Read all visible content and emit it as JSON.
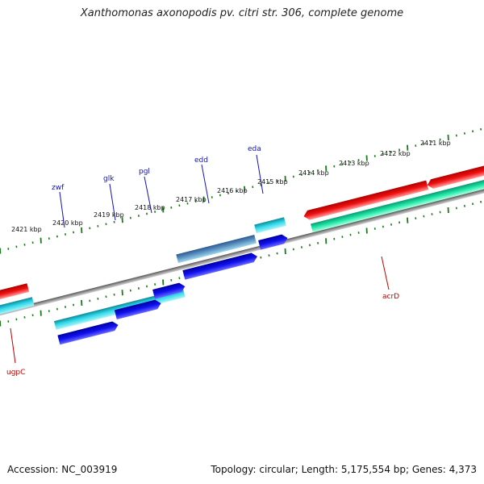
{
  "title": "Xanthomonas axonopodis pv. citri str. 306, complete genome",
  "footer": {
    "accession": "Accession: NC_003919",
    "topology": "Topology: circular; Length: 5,175,554 bp; Genes: 4,373"
  },
  "colors": {
    "backbone": "#808080",
    "ticks": "#1a7a1a",
    "label_blue": "#1010c0",
    "label_red": "#c00000",
    "cds_cyan": "#1fc8d8",
    "cds_blue": "#1010e0",
    "cds_red": "#e81010",
    "cds_green": "#20e0a0",
    "cds_steel": "#3a7ab0"
  },
  "kbp_labels": [
    "2411 kbp",
    "2412 kbp",
    "2413 kbp",
    "2414 kbp",
    "2415 kbp",
    "2416 kbp",
    "2417 kbp",
    "2418 kbp",
    "2419 kbp",
    "2420 kbp",
    "2421 kbp"
  ],
  "genes": [
    {
      "name": "zwf",
      "color": "blue"
    },
    {
      "name": "glk",
      "color": "blue"
    },
    {
      "name": "pgl",
      "color": "blue"
    },
    {
      "name": "edd",
      "color": "blue"
    },
    {
      "name": "eda",
      "color": "blue"
    },
    {
      "name": "acrD",
      "color": "red"
    },
    {
      "name": "ugpC",
      "color": "red"
    }
  ]
}
